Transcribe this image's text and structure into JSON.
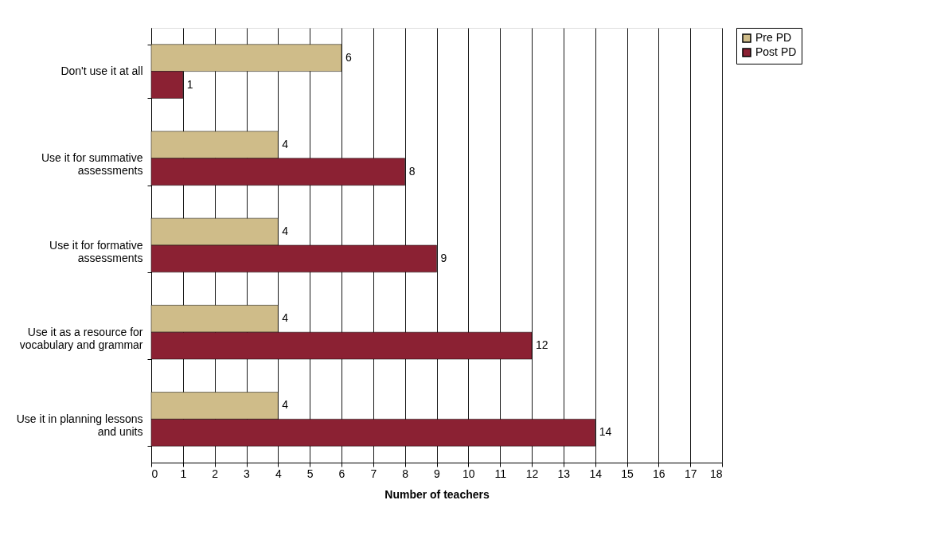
{
  "chart_data": {
    "type": "bar",
    "orientation": "horizontal",
    "xlabel": "Number of teachers",
    "categories": [
      "Don't use it at all",
      "Use it for summative assessments",
      "Use it for formative assessments",
      "Use it as a resource for vocabulary and grammar",
      "Use it in planning lessons and units"
    ],
    "series": [
      {
        "name": "Pre PD",
        "color": "#cfbc89",
        "values": [
          6,
          4,
          4,
          4,
          4
        ]
      },
      {
        "name": "Post PD",
        "color": "#8b2133",
        "values": [
          1,
          8,
          9,
          12,
          14
        ]
      }
    ],
    "xlim": [
      0,
      18
    ],
    "xticks": [
      0,
      1,
      2,
      3,
      4,
      5,
      6,
      7,
      8,
      9,
      10,
      11,
      12,
      13,
      14,
      15,
      16,
      17,
      18
    ],
    "grid": "x",
    "legend": "right",
    "data_labels": true
  }
}
